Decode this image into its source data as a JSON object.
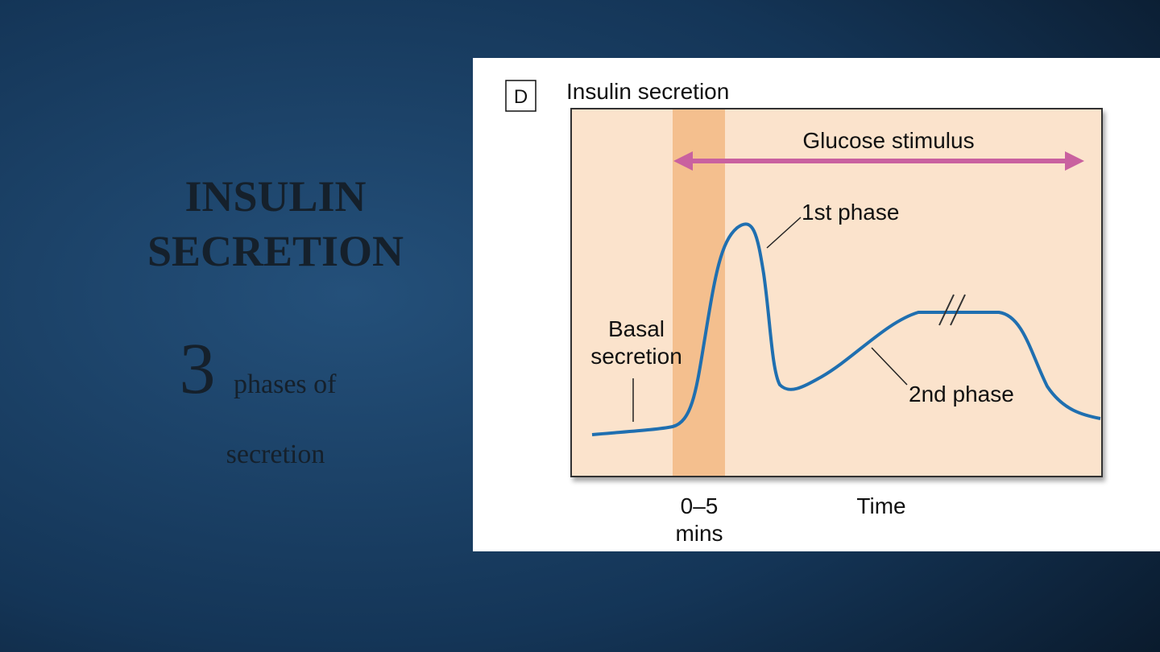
{
  "slide": {
    "title": [
      "INSULIN",
      "SECRETION"
    ],
    "big_number": "3",
    "subtitle": [
      "phases of",
      "secretion"
    ]
  },
  "figure": {
    "panel": "D",
    "title": "Insulin secretion",
    "stimulus": "Glucose stimulus",
    "first_phase": "1st phase",
    "basal": [
      "Basal",
      "secretion"
    ],
    "second_phase": "2nd phase",
    "window": [
      "0–5",
      "mins"
    ],
    "x_label": "Time"
  }
}
